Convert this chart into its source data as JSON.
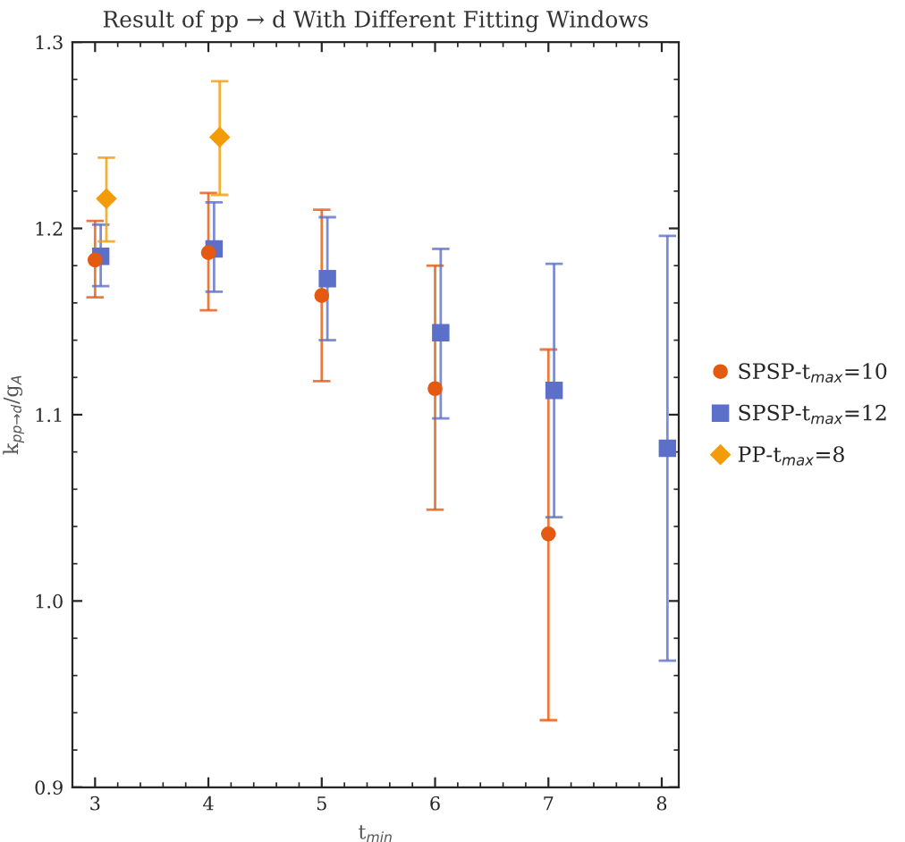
{
  "chart_data": {
    "type": "scatter",
    "title": "Result of pp → d With Different Fitting Windows",
    "xlabel": "t$_{min}$",
    "ylabel": "k$_{pp→d}$/g$_{A}$",
    "xlim": [
      2.8,
      8.15
    ],
    "xticks": [
      3,
      4,
      5,
      6,
      7,
      8
    ],
    "ylim": [
      0.9,
      1.3
    ],
    "yticks": [
      {
        "value": 0.9,
        "label": "0.9"
      },
      {
        "value": 1.0,
        "label": "1.0"
      },
      {
        "value": 1.1,
        "label": "1.1"
      },
      {
        "value": 1.2,
        "label": "1.2"
      },
      {
        "value": 1.3,
        "label": "1.3"
      }
    ],
    "grid": false,
    "legend": "right",
    "series": [
      {
        "name": "SPSP-t$_{max}$=10",
        "color": "#e35a10",
        "marker": "circle",
        "x": [
          3,
          4,
          5,
          6,
          7
        ],
        "values": [
          1.183,
          1.187,
          1.164,
          1.114,
          1.036
        ],
        "errors": [
          [
            1.163,
            1.204
          ],
          [
            1.156,
            1.219
          ],
          [
            1.118,
            1.21
          ],
          [
            1.049,
            1.18
          ],
          [
            0.936,
            1.135
          ]
        ]
      },
      {
        "name": "SPSP-t$_{max}$=12",
        "color": "#5c6fc9",
        "marker": "square",
        "x": [
          3.05,
          4.05,
          5.05,
          6.05,
          7.05,
          8.05
        ],
        "values": [
          1.185,
          1.189,
          1.173,
          1.144,
          1.113,
          1.082
        ],
        "errors": [
          [
            1.169,
            1.202
          ],
          [
            1.166,
            1.214
          ],
          [
            1.14,
            1.206
          ],
          [
            1.098,
            1.189
          ],
          [
            1.045,
            1.181
          ],
          [
            0.968,
            1.196
          ]
        ]
      },
      {
        "name": "PP-t$_{max}$=8",
        "color": "#f39c07",
        "marker": "diamond",
        "x": [
          3.1,
          4.1
        ],
        "values": [
          1.216,
          1.249
        ],
        "errors": [
          [
            1.193,
            1.238
          ],
          [
            1.218,
            1.279
          ]
        ]
      }
    ]
  }
}
